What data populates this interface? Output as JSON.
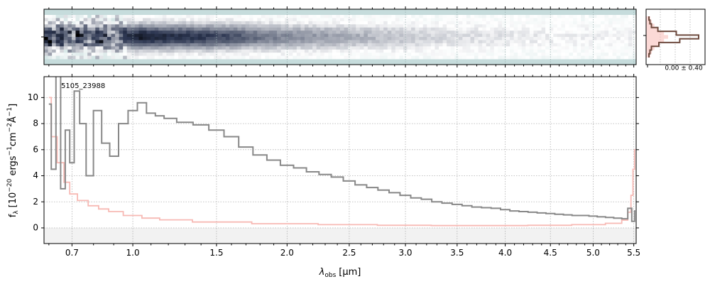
{
  "chart_data": [
    {
      "type": "heatmap",
      "panel": "2d-spectrum",
      "x_axis": "shared with 1d-spectrum",
      "y_ticks": "none labeled",
      "colormap": [
        "#c6dcdc",
        "#ffffff",
        "#2b3550",
        "#000000"
      ],
      "grid": true
    },
    {
      "type": "line",
      "panel": "spatial-profile",
      "annotation": "0.00 ± 0.40",
      "series": [
        {
          "color": "#6d4a3e",
          "values": [
            0.0,
            0.02,
            0.05,
            0.18,
            0.55,
            1.0,
            0.62,
            0.2,
            0.05,
            0.02,
            0.0
          ]
        },
        {
          "color": "#f7b9b4",
          "values": [
            0.05,
            0.1,
            0.2,
            0.35,
            0.55,
            0.7,
            0.55,
            0.35,
            0.2,
            0.1,
            0.05
          ]
        }
      ]
    },
    {
      "type": "line",
      "panel": "1d-spectrum",
      "annotation": "5105_23988",
      "xlabel": "λ_obs [μm]",
      "xlabel_main": "λ",
      "xlabel_sub": "obs",
      "xlabel_unit": "[μm]",
      "ylabel": "f_λ [10^-20 ergs^-1cm^-2Å^-1]",
      "ylabel_parts": {
        "f": "f",
        "sub": "λ",
        "a": "[10",
        "e1": "−20",
        "b": " ergs",
        "e2": "−1",
        "c": "cm",
        "e3": "−2",
        "d": "Å",
        "e4": "−1",
        "e": "]"
      },
      "x_scale": "power (roughly sqrt)",
      "xlim": [
        0.58,
        5.53
      ],
      "ylim": [
        -1.2,
        11.6
      ],
      "x_ticks": [
        0.7,
        1.0,
        1.5,
        2.0,
        2.5,
        3.0,
        3.5,
        4.0,
        4.5,
        5.0,
        5.5
      ],
      "x_tick_labels": [
        "0.7",
        "1.0",
        "1.5",
        "2.0",
        "2.5",
        "3.0",
        "3.5",
        "4.0",
        "4.5",
        "5.0",
        "5.5"
      ],
      "y_ticks": [
        0,
        2,
        4,
        6,
        8,
        10
      ],
      "y_tick_labels": [
        "0",
        "2",
        "4",
        "6",
        "8",
        "10"
      ],
      "grid": true,
      "series": [
        {
          "color": "#888888",
          "x": [
            0.6,
            0.62,
            0.64,
            0.66,
            0.68,
            0.7,
            0.72,
            0.75,
            0.78,
            0.82,
            0.86,
            0.9,
            0.95,
            1.0,
            1.05,
            1.1,
            1.15,
            1.2,
            1.3,
            1.4,
            1.5,
            1.6,
            1.7,
            1.8,
            1.9,
            2.0,
            2.1,
            2.2,
            2.3,
            2.4,
            2.5,
            2.6,
            2.7,
            2.8,
            2.9,
            3.0,
            3.1,
            3.2,
            3.3,
            3.4,
            3.5,
            3.6,
            3.7,
            3.8,
            3.9,
            4.0,
            4.1,
            4.2,
            4.3,
            4.4,
            4.5,
            4.6,
            4.7,
            4.8,
            4.9,
            5.0,
            5.1,
            5.2,
            5.3,
            5.4,
            5.45,
            5.5,
            5.52
          ],
          "y": [
            9.5,
            4.5,
            12.0,
            3.0,
            7.5,
            5.0,
            10.5,
            8.0,
            4.0,
            9.0,
            6.5,
            5.5,
            8.0,
            9.0,
            9.6,
            8.8,
            8.6,
            8.4,
            8.1,
            7.9,
            7.5,
            7.0,
            6.2,
            5.6,
            5.2,
            4.8,
            4.6,
            4.3,
            4.1,
            3.9,
            3.6,
            3.3,
            3.1,
            2.9,
            2.7,
            2.5,
            2.3,
            2.2,
            2.0,
            1.9,
            1.8,
            1.7,
            1.6,
            1.55,
            1.5,
            1.4,
            1.3,
            1.25,
            1.2,
            1.15,
            1.1,
            1.05,
            1.0,
            0.95,
            0.95,
            0.9,
            0.85,
            0.8,
            0.75,
            0.7,
            1.5,
            0.5,
            1.3
          ]
        },
        {
          "color": "#f7b9b4",
          "x": [
            0.6,
            0.62,
            0.65,
            0.68,
            0.7,
            0.75,
            0.8,
            0.85,
            0.9,
            1.0,
            1.1,
            1.2,
            1.5,
            2.0,
            2.5,
            3.0,
            3.5,
            4.0,
            4.5,
            5.0,
            5.3,
            5.4,
            5.45,
            5.48,
            5.5,
            5.52
          ],
          "y": [
            10.0,
            7.0,
            5.0,
            3.5,
            2.6,
            2.1,
            1.7,
            1.45,
            1.25,
            0.95,
            0.75,
            0.62,
            0.45,
            0.32,
            0.25,
            0.2,
            0.18,
            0.18,
            0.2,
            0.25,
            0.35,
            0.6,
            1.2,
            2.5,
            4.5,
            6.0
          ]
        }
      ]
    }
  ]
}
